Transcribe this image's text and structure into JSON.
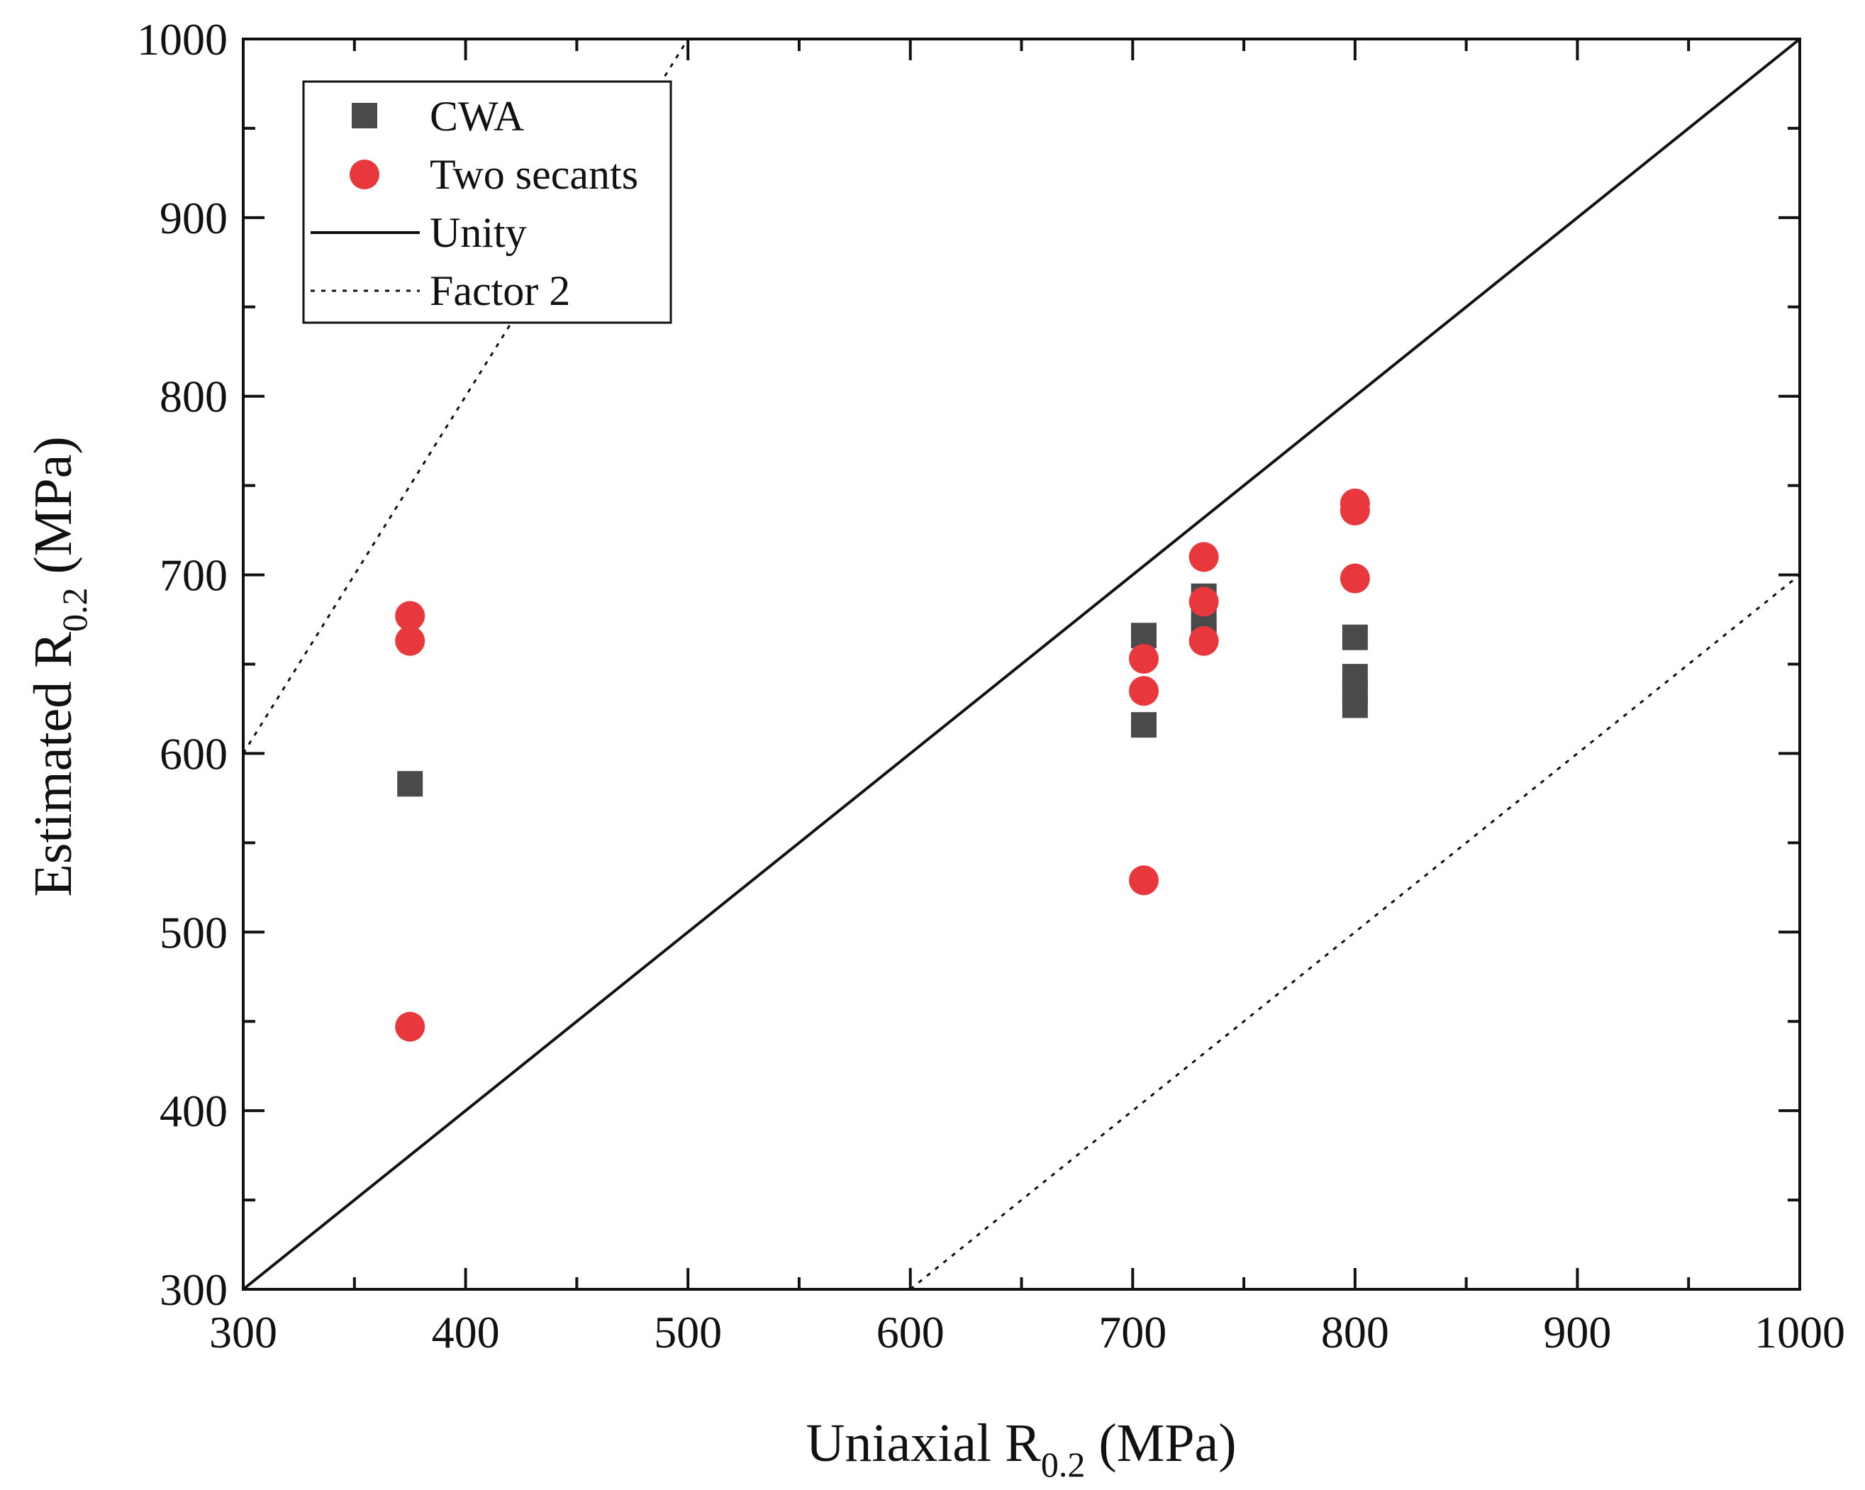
{
  "chart_data": {
    "type": "scatter",
    "xlabel": {
      "prefix": "Uniaxial R",
      "sub": "0.2",
      "suffix": " (MPa)"
    },
    "ylabel": {
      "prefix": "Estimated R",
      "sub": "0.2",
      "suffix": " (MPa)"
    },
    "xlim": [
      300,
      1000
    ],
    "ylim": [
      300,
      1000
    ],
    "x_ticks": [
      300,
      400,
      500,
      600,
      700,
      800,
      900,
      1000
    ],
    "y_ticks": [
      300,
      400,
      500,
      600,
      700,
      800,
      900,
      1000
    ],
    "x_tick_labels": [
      "300",
      "400",
      "500",
      "600",
      "700",
      "800",
      "900",
      "1000"
    ],
    "y_tick_labels": [
      "300",
      "400",
      "500",
      "600",
      "700",
      "800",
      "900",
      "1000"
    ],
    "minor_step": 50,
    "grid": false,
    "legend_position": "top-left",
    "series": [
      {
        "name": "CWA",
        "marker": "square",
        "color": "#4a4a4a",
        "points": [
          [
            375,
            583
          ],
          [
            705,
            666
          ],
          [
            705,
            616
          ],
          [
            732,
            688
          ],
          [
            732,
            676
          ],
          [
            732,
            668
          ],
          [
            800,
            665
          ],
          [
            800,
            643
          ],
          [
            800,
            634
          ],
          [
            800,
            627
          ]
        ]
      },
      {
        "name": "Two secants",
        "marker": "circle",
        "color": "#e8383d",
        "points": [
          [
            375,
            677
          ],
          [
            375,
            663
          ],
          [
            375,
            447
          ],
          [
            705,
            653
          ],
          [
            705,
            635
          ],
          [
            705,
            529
          ],
          [
            732,
            710
          ],
          [
            732,
            685
          ],
          [
            732,
            663
          ],
          [
            800,
            740
          ],
          [
            800,
            736
          ],
          [
            800,
            698
          ]
        ]
      },
      {
        "name": "Unity",
        "style": "solid",
        "color": "#111111",
        "line": [
          [
            300,
            300
          ],
          [
            1000,
            1000
          ]
        ]
      },
      {
        "name": "Factor 2",
        "style": "dotted",
        "color": "#111111",
        "segments": [
          [
            [
              300,
              600
            ],
            [
              500,
              1000
            ]
          ],
          [
            [
              600,
              300
            ],
            [
              1000,
              700
            ]
          ]
        ]
      }
    ]
  }
}
